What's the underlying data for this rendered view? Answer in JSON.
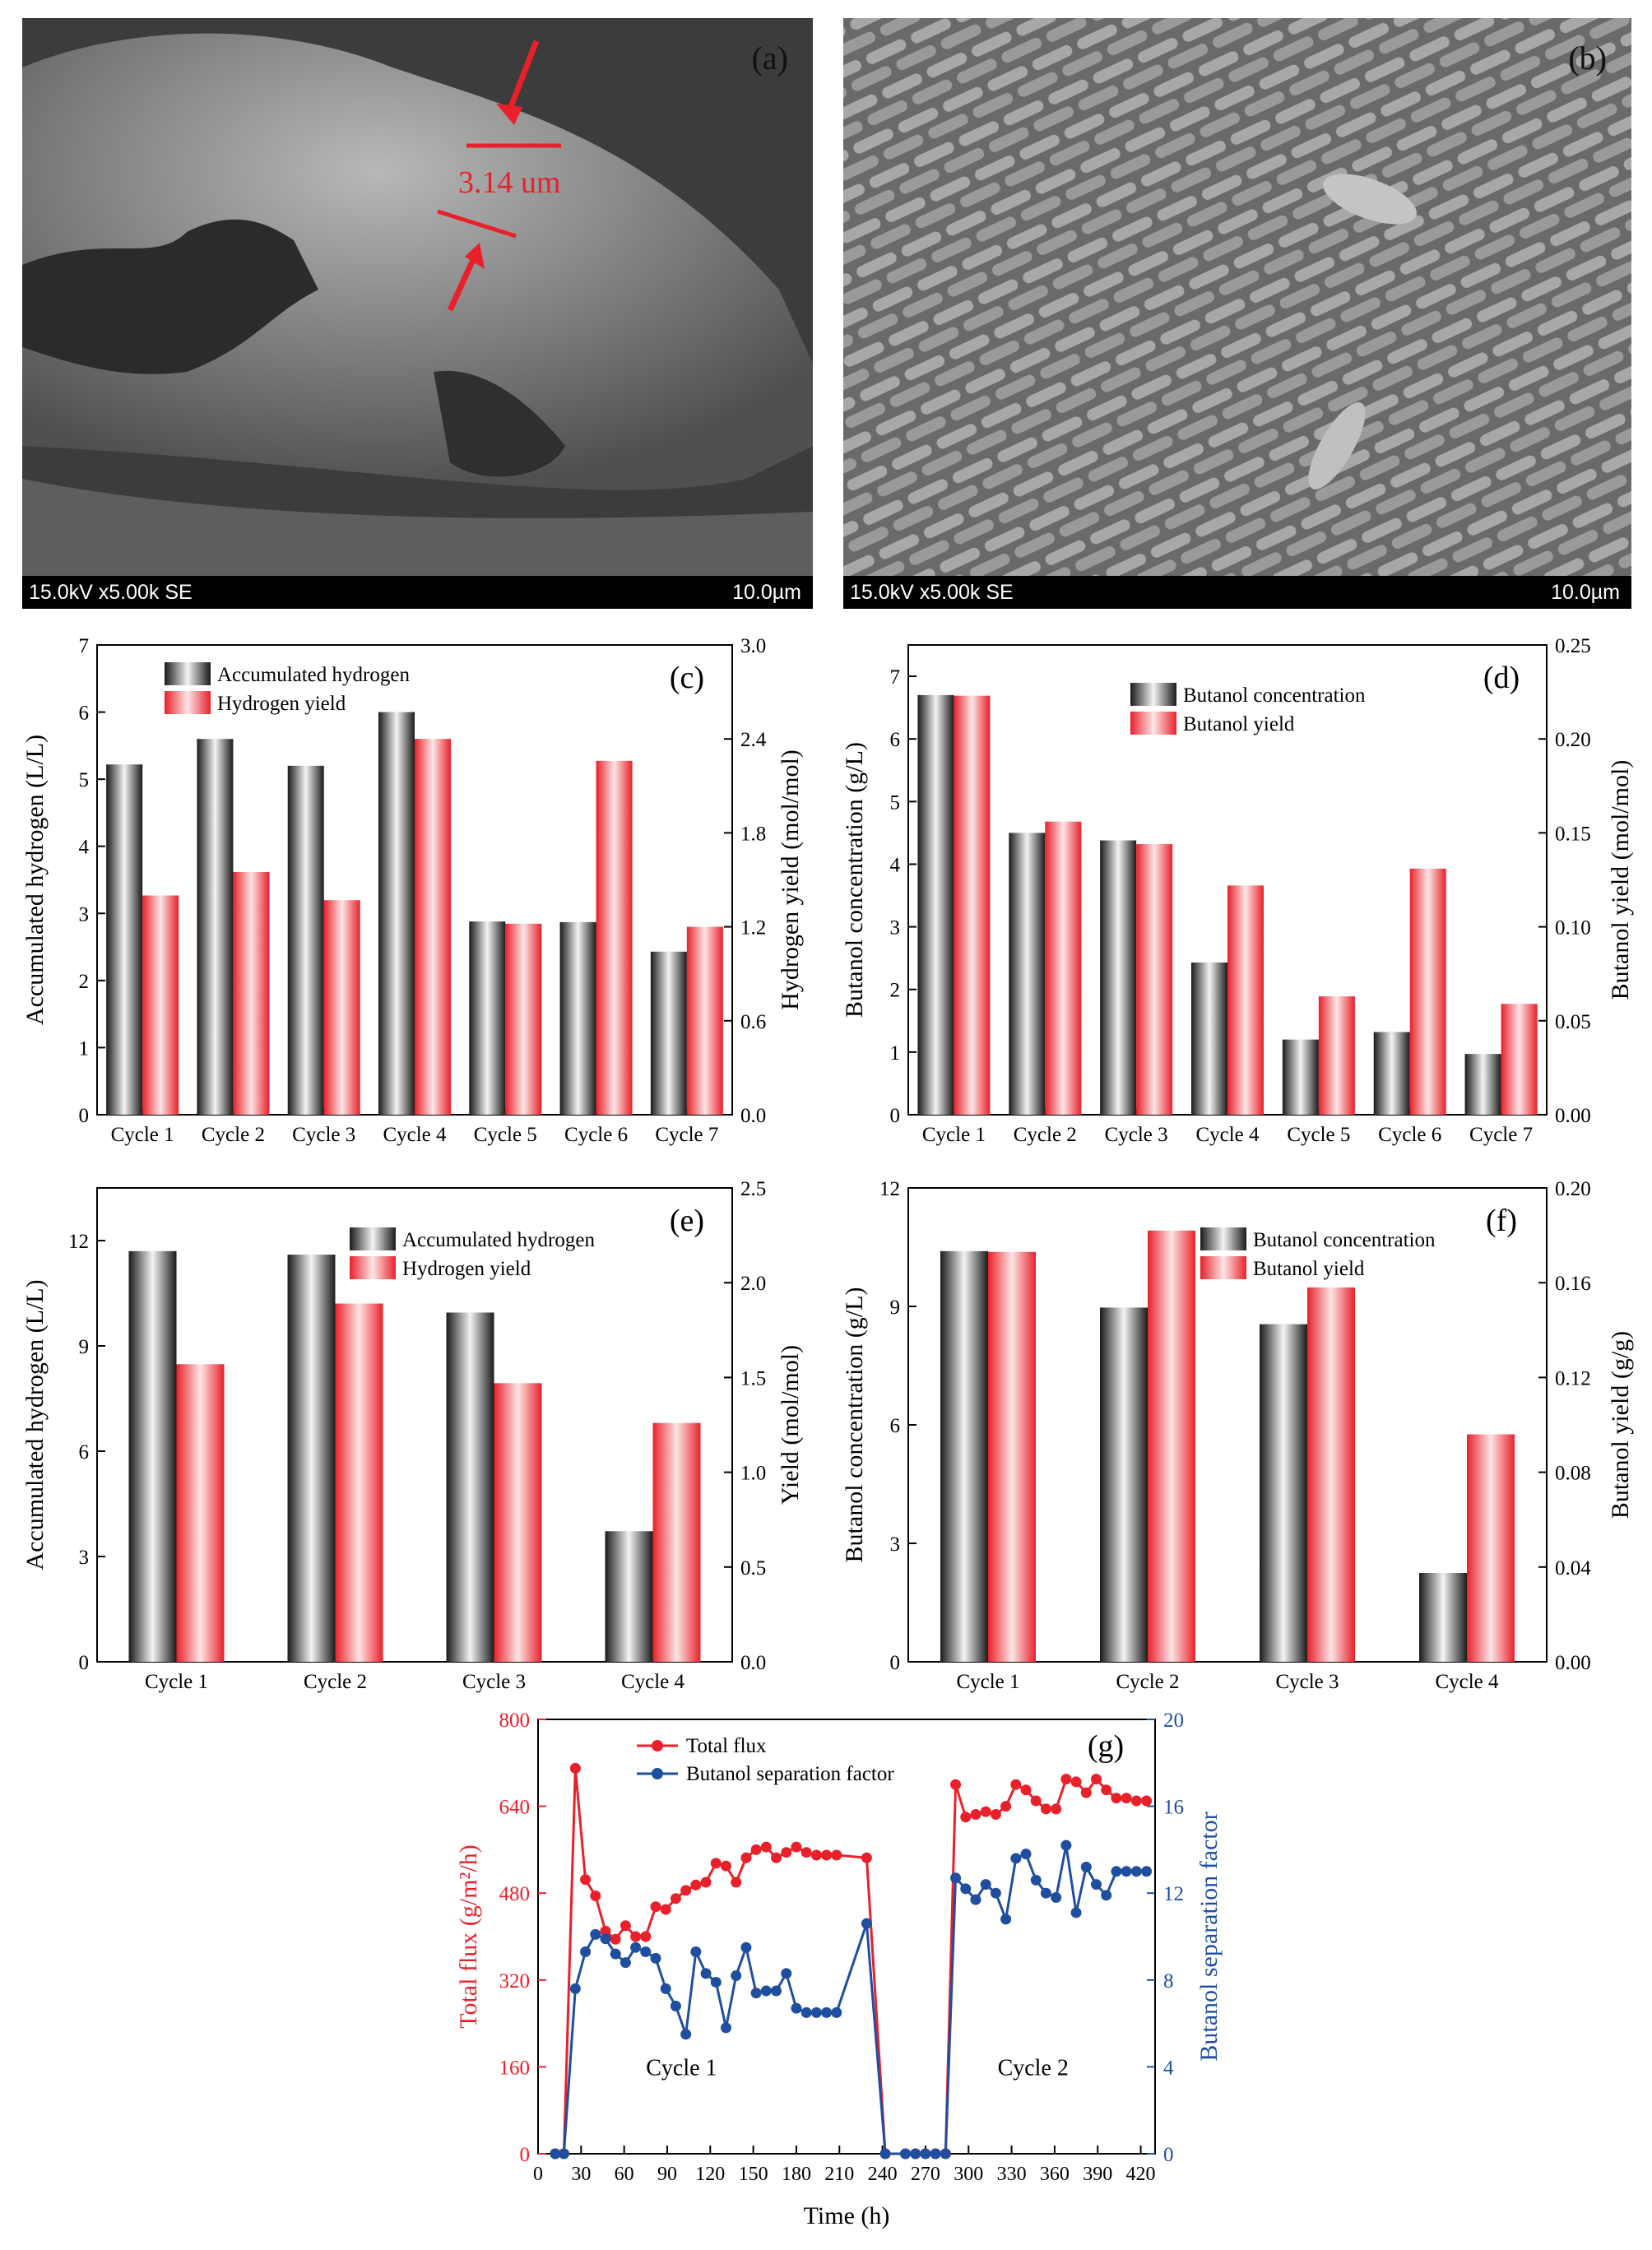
{
  "sem_images": [
    {
      "panel_label": "(a)",
      "info_text": "15.0kV x5.00k SE",
      "scale_text": "10.0µm",
      "annotation": "3.14 um"
    },
    {
      "panel_label": "(b)",
      "info_text": "15.0kV x5.00k SE",
      "scale_text": "10.0µm"
    }
  ],
  "chart_data": [
    {
      "panel": "(c)",
      "type": "bar",
      "categories": [
        "Cycle 1",
        "Cycle 2",
        "Cycle 3",
        "Cycle 4",
        "Cycle 5",
        "Cycle 6",
        "Cycle 7"
      ],
      "ylabel": "Accumulated hydrogen (L/L)",
      "ylabel_right": "Hydrogen yield (mol/mol)",
      "ylim": [
        0,
        7
      ],
      "yticks": [
        "0",
        "1",
        "2",
        "3",
        "4",
        "5",
        "6",
        "7"
      ],
      "ylim_right": [
        0,
        3.0
      ],
      "yticks_right": [
        "0.0",
        "0.6",
        "1.2",
        "1.8",
        "2.4",
        "3.0"
      ],
      "series": [
        {
          "name": "Accumulated hydrogen",
          "axis": "left",
          "color": "#555555",
          "values": [
            5.22,
            5.6,
            5.2,
            6.0,
            2.88,
            2.87,
            2.43
          ]
        },
        {
          "name": "Hydrogen yield",
          "axis": "right",
          "color": "#e03030",
          "values": [
            1.4,
            1.55,
            1.37,
            2.4,
            1.22,
            2.26,
            1.2
          ]
        }
      ]
    },
    {
      "panel": "(d)",
      "type": "bar",
      "categories": [
        "Cycle 1",
        "Cycle 2",
        "Cycle 3",
        "Cycle 4",
        "Cycle 5",
        "Cycle 6",
        "Cycle 7"
      ],
      "ylabel": "Butanol concentration (g/L)",
      "ylabel_right": "Butanol yield (mol/mol)",
      "ylim": [
        0,
        7.5
      ],
      "yticks": [
        "0",
        "1",
        "2",
        "3",
        "4",
        "5",
        "6",
        "7"
      ],
      "ylim_right": [
        0,
        0.25
      ],
      "yticks_right": [
        "0.00",
        "0.05",
        "0.10",
        "0.15",
        "0.20",
        "0.25"
      ],
      "series": [
        {
          "name": "Butanol concentration",
          "axis": "left",
          "color": "#555555",
          "values": [
            6.7,
            4.5,
            4.38,
            2.43,
            1.2,
            1.32,
            0.97
          ]
        },
        {
          "name": "Butanol yield",
          "axis": "right",
          "color": "#e03030",
          "values": [
            0.223,
            0.156,
            0.144,
            0.122,
            0.063,
            0.131,
            0.059
          ]
        }
      ]
    },
    {
      "panel": "(e)",
      "type": "bar",
      "categories": [
        "Cycle 1",
        "Cycle 2",
        "Cycle 3",
        "Cycle 4"
      ],
      "ylabel": "Accumulated hydrogen (L/L)",
      "ylabel_right": "Yield (mol/mol)",
      "ylim": [
        0,
        13.5
      ],
      "yticks": [
        "0",
        "3",
        "6",
        "9",
        "12"
      ],
      "ylim_right": [
        0,
        2.5
      ],
      "yticks_right": [
        "0.0",
        "0.5",
        "1.0",
        "1.5",
        "2.0",
        "2.5"
      ],
      "series": [
        {
          "name": "Accumulated hydrogen",
          "axis": "left",
          "color": "#555555",
          "values": [
            11.7,
            11.6,
            9.95,
            3.72
          ]
        },
        {
          "name": "Hydrogen yield",
          "axis": "right",
          "color": "#e03030",
          "values": [
            1.57,
            1.89,
            1.47,
            1.26
          ]
        }
      ]
    },
    {
      "panel": "(f)",
      "type": "bar",
      "categories": [
        "Cycle 1",
        "Cycle 2",
        "Cycle 3",
        "Cycle 4"
      ],
      "ylabel": "Butanol concentration (g/L)",
      "ylabel_right": "Butanol yield (g/g)",
      "ylim": [
        0,
        12
      ],
      "yticks": [
        "0",
        "3",
        "6",
        "9",
        "12"
      ],
      "ylim_right": [
        0,
        0.2
      ],
      "yticks_right": [
        "0.00",
        "0.04",
        "0.08",
        "0.12",
        "0.16",
        "0.20"
      ],
      "series": [
        {
          "name": "Butanol concentration",
          "axis": "left",
          "color": "#555555",
          "values": [
            10.4,
            8.97,
            8.55,
            2.25
          ]
        },
        {
          "name": "Butanol yield",
          "axis": "right",
          "color": "#e03030",
          "values": [
            0.173,
            0.182,
            0.158,
            0.096
          ]
        }
      ]
    },
    {
      "panel": "(g)",
      "type": "line",
      "xlabel": "Time (h)",
      "ylabel": "Total flux (g/m²/h)",
      "ylabel_right": "Butanol separation factor",
      "xlim": [
        0,
        430
      ],
      "xticks": [
        "0",
        "30",
        "60",
        "90",
        "120",
        "150",
        "180",
        "210",
        "240",
        "270",
        "300",
        "330",
        "360",
        "390",
        "420"
      ],
      "ylim": [
        0,
        800
      ],
      "yticks": [
        "0",
        "160",
        "320",
        "480",
        "640",
        "800"
      ],
      "ylim_right": [
        0,
        20
      ],
      "yticks_right": [
        "0",
        "4",
        "8",
        "12",
        "16",
        "20"
      ],
      "annotations": [
        "Cycle 1",
        "Cycle 2"
      ],
      "series": [
        {
          "name": "Total flux",
          "axis": "left",
          "color": "#e8202a",
          "marker": "circle",
          "x": [
            12,
            18,
            26,
            33,
            40,
            47,
            54,
            61,
            68,
            75,
            82,
            89,
            96,
            103,
            110,
            117,
            124,
            131,
            138,
            145,
            152,
            159,
            166,
            173,
            180,
            187,
            194,
            201,
            208,
            229,
            242,
            256,
            263,
            270,
            277,
            284,
            291,
            298,
            305,
            312,
            319,
            326,
            333,
            340,
            347,
            354,
            361,
            368,
            375,
            382,
            389,
            396,
            403,
            410,
            417,
            424
          ],
          "y": [
            0,
            0,
            710,
            505,
            475,
            410,
            395,
            420,
            400,
            400,
            455,
            450,
            470,
            485,
            495,
            500,
            535,
            530,
            500,
            545,
            560,
            565,
            545,
            555,
            565,
            555,
            550,
            550,
            550,
            545,
            0,
            0,
            0,
            0,
            0,
            0,
            680,
            620,
            625,
            630,
            625,
            640,
            680,
            670,
            650,
            635,
            635,
            690,
            685,
            665,
            690,
            670,
            655,
            655,
            650,
            650
          ]
        },
        {
          "name": "Butanol separation factor",
          "axis": "right",
          "color": "#1f4e9e",
          "marker": "circle",
          "x": [
            12,
            18,
            26,
            33,
            40,
            47,
            54,
            61,
            68,
            75,
            82,
            89,
            96,
            103,
            110,
            117,
            124,
            131,
            138,
            145,
            152,
            159,
            166,
            173,
            180,
            187,
            194,
            201,
            208,
            229,
            242,
            256,
            263,
            270,
            277,
            284,
            291,
            298,
            305,
            312,
            319,
            326,
            333,
            340,
            347,
            354,
            361,
            368,
            375,
            382,
            389,
            396,
            403,
            410,
            417,
            424
          ],
          "y": [
            0,
            0,
            7.6,
            9.3,
            10.1,
            9.9,
            9.2,
            8.8,
            9.5,
            9.3,
            9.0,
            7.6,
            6.8,
            5.5,
            9.3,
            8.3,
            7.9,
            5.8,
            8.2,
            9.5,
            7.4,
            7.5,
            7.5,
            8.3,
            6.7,
            6.5,
            6.5,
            6.5,
            6.5,
            10.6,
            0,
            0,
            0,
            0,
            0,
            0,
            12.7,
            12.2,
            11.7,
            12.4,
            12.0,
            10.8,
            13.6,
            13.8,
            12.6,
            12.0,
            11.8,
            14.2,
            11.1,
            13.2,
            12.4,
            11.9,
            13.0,
            13.0,
            13.0,
            13.0
          ]
        }
      ]
    }
  ]
}
